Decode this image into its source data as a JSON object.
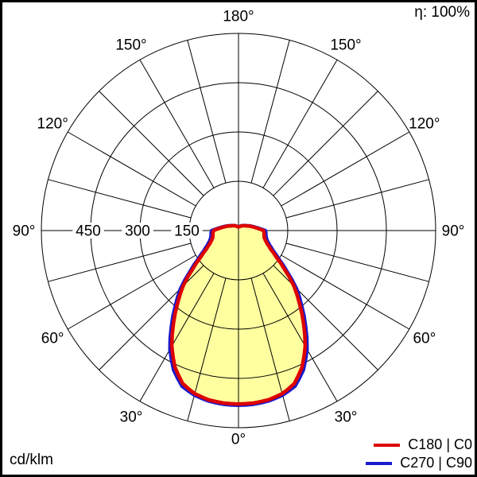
{
  "header": {
    "efficiency_label": "η: 100%"
  },
  "footer": {
    "unit_label": "cd/klm"
  },
  "legend": {
    "items": [
      {
        "label": "C180 | C0",
        "color": "#dd0000"
      },
      {
        "label": "C270 | C90",
        "color": "#1a1acc"
      }
    ]
  },
  "chart_data": {
    "type": "polar",
    "subtype": "luminous-intensity-distribution",
    "unit": "cd/klm",
    "efficiency_label": "η: 100%",
    "radial_axis": {
      "ticks": [
        150,
        300,
        450
      ],
      "max": 600,
      "tick_labels_on": "left-horizontal"
    },
    "angle_axis": {
      "labels_deg": [
        0,
        30,
        60,
        90,
        120,
        150,
        180
      ],
      "zero_position": "bottom",
      "spoke_step_deg": 15
    },
    "grid": {
      "color": "#000000",
      "rings": [
        150,
        300,
        450,
        600
      ]
    },
    "fill_color": "#ffffa0",
    "background": "#ffffff",
    "legend_position": "bottom-right",
    "series": [
      {
        "name": "C180 | C0",
        "color": "#dd0000",
        "points_deg_cd": [
          [
            0,
            528
          ],
          [
            5,
            527
          ],
          [
            10,
            523
          ],
          [
            15,
            514
          ],
          [
            20,
            496
          ],
          [
            25,
            458
          ],
          [
            30,
            406
          ],
          [
            35,
            345
          ],
          [
            40,
            288
          ],
          [
            45,
            238
          ],
          [
            50,
            182
          ],
          [
            55,
            140
          ],
          [
            60,
            113
          ],
          [
            65,
            97
          ],
          [
            70,
            87
          ],
          [
            75,
            81
          ],
          [
            80,
            79
          ],
          [
            85,
            78
          ],
          [
            90,
            76
          ],
          [
            95,
            62
          ],
          [
            100,
            52
          ],
          [
            105,
            44
          ],
          [
            110,
            38
          ],
          [
            115,
            33
          ],
          [
            120,
            28
          ],
          [
            130,
            23
          ],
          [
            140,
            19
          ],
          [
            150,
            16
          ],
          [
            160,
            13
          ],
          [
            170,
            12
          ],
          [
            180,
            11
          ]
        ]
      },
      {
        "name": "C270 | C90",
        "color": "#1a1acc",
        "points_deg_cd": [
          [
            0,
            532
          ],
          [
            5,
            531
          ],
          [
            10,
            527
          ],
          [
            15,
            519
          ],
          [
            20,
            504
          ],
          [
            25,
            468
          ],
          [
            30,
            418
          ],
          [
            35,
            357
          ],
          [
            40,
            300
          ],
          [
            45,
            250
          ],
          [
            50,
            193
          ],
          [
            55,
            150
          ],
          [
            60,
            122
          ],
          [
            65,
            105
          ],
          [
            70,
            94
          ],
          [
            75,
            88
          ],
          [
            80,
            85
          ],
          [
            85,
            84
          ],
          [
            90,
            82
          ],
          [
            95,
            66
          ],
          [
            100,
            55
          ],
          [
            105,
            47
          ],
          [
            110,
            40
          ],
          [
            115,
            35
          ],
          [
            120,
            30
          ],
          [
            130,
            24
          ],
          [
            140,
            20
          ],
          [
            150,
            17
          ],
          [
            160,
            14
          ],
          [
            170,
            13
          ],
          [
            180,
            12
          ]
        ]
      }
    ]
  }
}
